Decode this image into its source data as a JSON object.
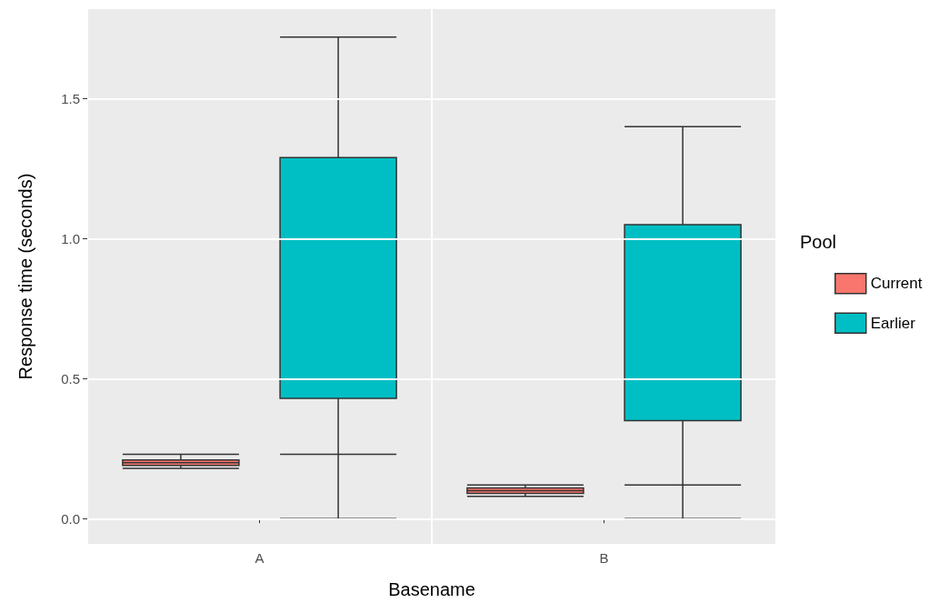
{
  "chart_data": {
    "type": "box",
    "xlabel": "Basename",
    "ylabel": "Response time (seconds)",
    "legend_title": "Pool",
    "categories": [
      "A",
      "B"
    ],
    "series": [
      {
        "name": "Current",
        "color": "#f8766d",
        "boxes": [
          {
            "low": 0.18,
            "q1": 0.19,
            "median": 0.2,
            "q3": 0.21,
            "high": 0.23
          },
          {
            "low": 0.08,
            "q1": 0.09,
            "median": 0.1,
            "q3": 0.11,
            "high": 0.12
          }
        ]
      },
      {
        "name": "Earlier",
        "color": "#00bfc4",
        "boxes": [
          {
            "low": 0,
            "q1": 0.43,
            "median": 0.23,
            "q3": 1.29,
            "high": 1.72
          },
          {
            "low": 0,
            "q1": 0.35,
            "median": 0.12,
            "q3": 1.05,
            "high": 1.4
          }
        ]
      }
    ],
    "ylim": [
      -0.09,
      1.82
    ],
    "yticks": [
      {
        "value": 0,
        "label": "0.0"
      },
      0.5,
      {
        "value": 1,
        "label": "1.0"
      },
      1.5
    ],
    "grid": true,
    "legend": "right"
  }
}
